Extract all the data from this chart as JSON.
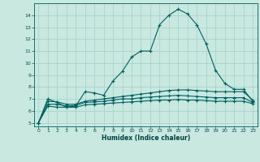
{
  "xlabel": "Humidex (Indice chaleur)",
  "bg_color": "#c8e8e0",
  "grid_color": "#a8d4cc",
  "line_color": "#006060",
  "xlim": [
    -0.5,
    23.5
  ],
  "ylim": [
    4.7,
    15.0
  ],
  "yticks": [
    5,
    6,
    7,
    8,
    9,
    10,
    11,
    12,
    13,
    14
  ],
  "xticks": [
    0,
    1,
    2,
    3,
    4,
    5,
    6,
    7,
    8,
    9,
    10,
    11,
    12,
    13,
    14,
    15,
    16,
    17,
    18,
    19,
    20,
    21,
    22,
    23
  ],
  "series1": {
    "x": [
      0,
      1,
      2,
      3,
      4,
      5,
      6,
      7,
      8,
      9,
      10,
      11,
      12,
      13,
      14,
      15,
      16,
      17,
      18,
      19,
      20,
      21,
      22,
      23
    ],
    "y": [
      5.0,
      7.0,
      6.7,
      6.3,
      6.4,
      7.6,
      7.5,
      7.3,
      8.5,
      9.3,
      10.5,
      11.0,
      11.0,
      13.2,
      14.0,
      14.5,
      14.1,
      13.2,
      11.6,
      9.4,
      8.3,
      7.8,
      7.8,
      6.8
    ]
  },
  "series2": {
    "x": [
      0,
      1,
      2,
      3,
      4,
      5,
      6,
      7,
      8,
      9,
      10,
      11,
      12,
      13,
      14,
      15,
      16,
      17,
      18,
      19,
      20,
      21,
      22,
      23
    ],
    "y": [
      5.0,
      6.8,
      6.75,
      6.55,
      6.55,
      6.8,
      6.9,
      7.0,
      7.1,
      7.2,
      7.3,
      7.4,
      7.5,
      7.6,
      7.7,
      7.75,
      7.75,
      7.7,
      7.65,
      7.6,
      7.6,
      7.6,
      7.6,
      6.9
    ]
  },
  "series3": {
    "x": [
      0,
      1,
      2,
      3,
      4,
      5,
      6,
      7,
      8,
      9,
      10,
      11,
      12,
      13,
      14,
      15,
      16,
      17,
      18,
      19,
      20,
      21,
      22,
      23
    ],
    "y": [
      5.0,
      6.55,
      6.55,
      6.4,
      6.45,
      6.7,
      6.75,
      6.8,
      6.9,
      7.0,
      7.0,
      7.1,
      7.15,
      7.2,
      7.25,
      7.3,
      7.25,
      7.2,
      7.15,
      7.1,
      7.1,
      7.1,
      7.1,
      6.7
    ]
  },
  "series4": {
    "x": [
      0,
      1,
      2,
      3,
      4,
      5,
      6,
      7,
      8,
      9,
      10,
      11,
      12,
      13,
      14,
      15,
      16,
      17,
      18,
      19,
      20,
      21,
      22,
      23
    ],
    "y": [
      5.0,
      6.4,
      6.3,
      6.3,
      6.3,
      6.5,
      6.55,
      6.6,
      6.65,
      6.7,
      6.75,
      6.8,
      6.85,
      6.9,
      6.9,
      6.95,
      6.9,
      6.9,
      6.85,
      6.8,
      6.8,
      6.8,
      6.8,
      6.6
    ]
  }
}
